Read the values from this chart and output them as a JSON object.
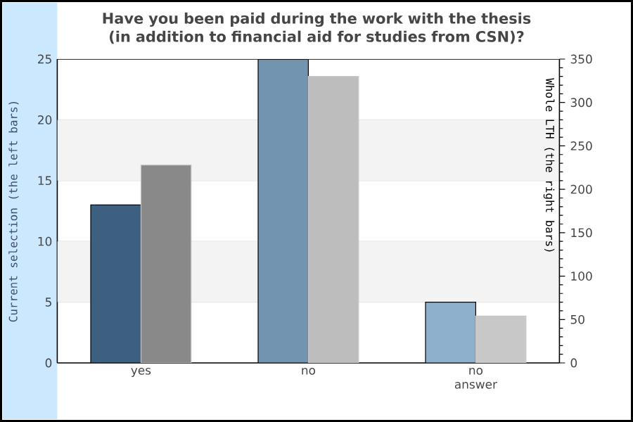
{
  "chart_data": {
    "type": "bar",
    "title": "Have you been paid during the work with the thesis (in addition to financial aid for studies from CSN)?",
    "ylabel": "Current selection (the left bars)",
    "y2label": "Whole LTH (the right bars)",
    "categories": [
      "yes",
      "no",
      "no answer"
    ],
    "series": [
      {
        "axis": "y",
        "colors": [
          "#3e6080",
          "#7394b0",
          "#8fb0cc"
        ],
        "values": [
          13,
          25,
          5
        ]
      },
      {
        "axis": "y2",
        "colors": [
          "#898989",
          "#bdbdbd",
          "#c8c8c8"
        ],
        "values": [
          228,
          330,
          54
        ]
      }
    ],
    "ylim": [
      0,
      25
    ],
    "yticks": [
      0,
      5,
      10,
      15,
      20,
      25
    ],
    "y2lim": [
      0,
      350
    ],
    "y2ticks": [
      0,
      50,
      100,
      150,
      200,
      250,
      300,
      350
    ],
    "grid": "y",
    "bands": [
      {
        "axis": "y",
        "from": 5,
        "to": 10,
        "color": "#f3f3f3"
      },
      {
        "axis": "y",
        "from": 15,
        "to": 20,
        "color": "#f3f3f3"
      }
    ]
  }
}
